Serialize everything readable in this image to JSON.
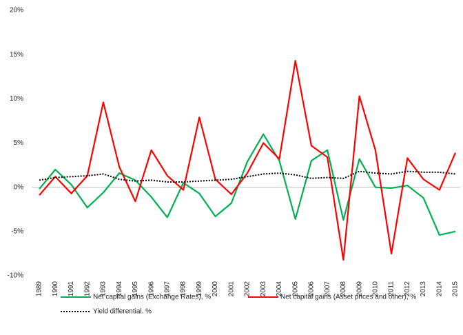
{
  "chart_data": {
    "type": "line",
    "categories": [
      "1989",
      "1990",
      "1991",
      "1992",
      "1993",
      "1994",
      "1995",
      "1996",
      "1997",
      "1998",
      "1999",
      "2000",
      "2001",
      "2002",
      "2003",
      "2004",
      "2005",
      "2006",
      "2007",
      "2008",
      "2009",
      "2010",
      "2011",
      "2012",
      "2013",
      "2014",
      "2015"
    ],
    "series": [
      {
        "name": "Net capital gains (Exchange Rates), %",
        "color": "#00b050",
        "style": "solid",
        "values": [
          -0.2,
          2.0,
          0.3,
          -2.3,
          -0.6,
          1.6,
          0.8,
          -1.1,
          -3.4,
          0.5,
          -0.7,
          -3.3,
          -1.8,
          2.9,
          6.0,
          3.0,
          -3.6,
          3.0,
          4.2,
          -3.7,
          3.2,
          0.0,
          -0.1,
          0.2,
          -1.2,
          -5.4,
          -5.0
        ]
      },
      {
        "name": "Net capital gains (Asset prices and other), %",
        "color": "#ff0000",
        "style": "solid",
        "values": [
          -0.9,
          1.2,
          -0.7,
          1.3,
          9.6,
          2.3,
          -1.6,
          4.2,
          1.3,
          -0.3,
          7.9,
          0.9,
          -0.8,
          1.6,
          5.0,
          3.2,
          14.3,
          4.7,
          3.4,
          -8.2,
          10.3,
          4.2,
          -7.5,
          3.3,
          0.9,
          -0.3,
          3.9
        ]
      },
      {
        "name": "Yield differential. %",
        "color": "#000000",
        "style": "dotted",
        "values": [
          0.8,
          1.1,
          1.2,
          1.3,
          1.5,
          0.9,
          0.7,
          0.8,
          0.6,
          0.6,
          0.7,
          0.8,
          0.9,
          1.2,
          1.5,
          1.6,
          1.4,
          1.0,
          1.1,
          1.0,
          1.8,
          1.6,
          1.5,
          1.8,
          1.7,
          1.7,
          1.5
        ]
      }
    ],
    "ylim": [
      -10,
      20
    ],
    "yticks": [
      {
        "value": -10,
        "label": "-10%"
      },
      {
        "value": -5,
        "label": "-5%"
      },
      {
        "value": 0,
        "label": "0%"
      },
      {
        "value": 5,
        "label": "5%"
      },
      {
        "value": 10,
        "label": "10%"
      },
      {
        "value": 15,
        "label": "15%"
      },
      {
        "value": 20,
        "label": "20%"
      }
    ],
    "grid": false,
    "legend": "bottom"
  }
}
